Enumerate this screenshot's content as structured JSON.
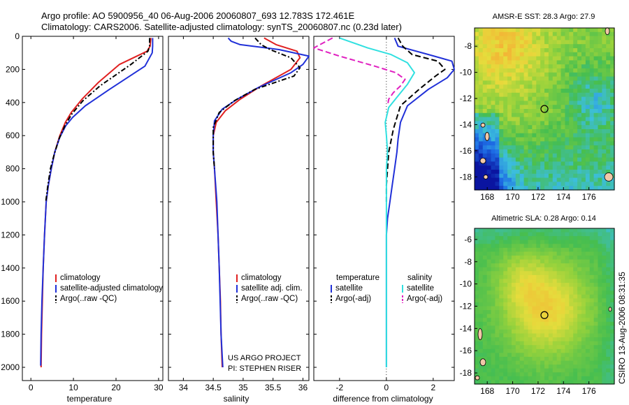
{
  "title_line1": "Argo profile: AO 5900956_40 06-Aug-2006 20060807_693 12.783S 172.461E",
  "title_line2": "Climatology: CARS2006. Satellite-adjusted climatology: synTS_20060807.nc (0.23d later)",
  "side_label": "CSIRO 13-Aug-2006 08:31:35",
  "credit_line1": "US ARGO PROJECT",
  "credit_line2": "PI: STEPHEN RISER",
  "colors": {
    "climatology": "#e02020",
    "satellite": "#2030d8",
    "argo": "#000000",
    "sat_salinity": "#30e0e0",
    "argo_adj": "#e020c0"
  },
  "chart_data": [
    {
      "type": "line",
      "xlabel": "temperature",
      "xticks": [
        0,
        10,
        20,
        30
      ],
      "xlim": [
        -2,
        31
      ],
      "ylim": [
        0,
        2080
      ],
      "yticks": [
        0,
        200,
        400,
        600,
        800,
        1000,
        1200,
        1400,
        1600,
        1800,
        2000
      ],
      "y_reversed": true,
      "legend": [
        "climatology",
        "satellite-adjusted climatology",
        "Argo(..raw -QC)"
      ],
      "series": [
        {
          "name": "climatology",
          "x": [
            28.2,
            28.0,
            27.3,
            20.8,
            15.8,
            12.0,
            9.5,
            8.1,
            6.8,
            5.6,
            4.8,
            4.1,
            3.6,
            3.2,
            2.9,
            2.7,
            2.5,
            2.4
          ],
          "y": [
            10,
            60,
            90,
            170,
            280,
            380,
            460,
            520,
            600,
            700,
            800,
            900,
            1000,
            1200,
            1400,
            1600,
            1800,
            2000
          ]
        },
        {
          "name": "satellite-adjusted climatology",
          "x": [
            28.6,
            28.6,
            28.5,
            26.8,
            18.5,
            12.8,
            9.8,
            8.2,
            6.8,
            5.6,
            4.8,
            4.1,
            3.6,
            3.2,
            2.9,
            2.6,
            2.4,
            2.3
          ],
          "y": [
            10,
            60,
            100,
            180,
            320,
            420,
            490,
            540,
            610,
            700,
            800,
            900,
            1000,
            1200,
            1400,
            1600,
            1800,
            1990
          ]
        },
        {
          "name": "Argo(..raw -QC)",
          "x": [
            27.9,
            27.9,
            27.5,
            23.5,
            16.2,
            12.2,
            9.6,
            8.0,
            6.6,
            5.4,
            4.6,
            4.0,
            3.5
          ],
          "y": [
            10,
            60,
            90,
            170,
            300,
            390,
            470,
            540,
            620,
            720,
            800,
            900,
            1000
          ]
        }
      ]
    },
    {
      "type": "line",
      "xlabel": "salinity",
      "xticks": [
        34,
        34.5,
        35,
        35.5,
        36
      ],
      "xlim": [
        33.75,
        36.1
      ],
      "ylim": [
        0,
        2080
      ],
      "y_reversed": true,
      "legend": [
        "climatology",
        "satellite adj. clim.",
        "Argo(..raw -QC)"
      ],
      "series": [
        {
          "name": "climatology",
          "x": [
            35.35,
            35.55,
            35.9,
            35.95,
            35.8,
            35.3,
            34.95,
            34.7,
            34.55,
            34.5,
            34.5,
            34.52,
            34.55,
            34.58,
            34.6,
            34.62,
            34.63,
            34.65
          ],
          "y": [
            10,
            50,
            90,
            130,
            200,
            300,
            380,
            450,
            520,
            600,
            700,
            800,
            1000,
            1200,
            1400,
            1600,
            1800,
            2000
          ]
        },
        {
          "name": "satellite adj. clim.",
          "x": [
            34.75,
            34.8,
            34.95,
            35.6,
            36.1,
            36.0,
            35.8,
            35.25,
            34.9,
            34.65,
            34.52,
            34.5,
            34.5,
            34.52,
            34.56,
            34.6,
            34.63,
            34.66
          ],
          "y": [
            10,
            30,
            50,
            80,
            120,
            170,
            220,
            310,
            380,
            440,
            510,
            600,
            700,
            800,
            1000,
            1400,
            1800,
            2000
          ]
        },
        {
          "name": "Argo(..raw -QC)",
          "x": [
            35.2,
            35.3,
            35.45,
            35.8,
            35.95,
            35.85,
            35.2,
            34.85,
            34.6,
            34.5,
            34.5,
            34.52
          ],
          "y": [
            10,
            50,
            80,
            130,
            190,
            240,
            320,
            390,
            460,
            550,
            700,
            800
          ]
        }
      ]
    },
    {
      "type": "line",
      "xlabel": "difference from climatology",
      "xticks": [
        -2,
        0,
        2
      ],
      "xlim": [
        -3.1,
        2.9
      ],
      "ylim": [
        0,
        2080
      ],
      "y_reversed": true,
      "legend": [
        "temperature satellite",
        "temperature Argo(-adj)",
        "salinity satellite",
        "salinity Argo(-adj)"
      ],
      "series": [
        {
          "name": "temperature satellite",
          "x": [
            0.35,
            0.5,
            1.8,
            2.8,
            2.9,
            2.6,
            1.8,
            0.9,
            0.6,
            0.5,
            0.45,
            0.35,
            0.25,
            0.15,
            0.05,
            0.0,
            0.0,
            0.0,
            0.0,
            0.0
          ],
          "y": [
            10,
            60,
            110,
            150,
            200,
            250,
            320,
            420,
            520,
            620,
            700,
            800,
            900,
            1000,
            1100,
            1200,
            1400,
            1600,
            1800,
            2000
          ]
        },
        {
          "name": "temperature Argo(-adj)",
          "x": [
            0.5,
            0.7,
            1.1,
            2.2,
            2.5,
            2.1,
            1.4,
            0.6,
            0.3,
            0.1,
            0.05,
            0.0,
            0.0
          ],
          "y": [
            10,
            60,
            110,
            150,
            200,
            240,
            320,
            420,
            560,
            700,
            800,
            900,
            1000
          ]
        },
        {
          "name": "salinity satellite",
          "x": [
            -2.0,
            -1.5,
            -0.8,
            0.2,
            0.9,
            1.2,
            0.9,
            0.5,
            0.1,
            -0.05,
            0.0,
            0.05,
            0.0,
            0.0,
            0.0,
            0.0,
            0.0,
            0.0,
            0.0,
            0.0
          ],
          "y": [
            10,
            35,
            70,
            110,
            160,
            220,
            290,
            360,
            430,
            520,
            600,
            700,
            800,
            900,
            1100,
            1300,
            1500,
            1700,
            1850,
            2000
          ]
        },
        {
          "name": "salinity Argo(-adj)",
          "x": [
            -2.3,
            -3.1,
            -2.0,
            -0.5,
            0.4,
            0.8,
            0.6,
            0.3,
            0.1,
            0.05
          ],
          "y": [
            10,
            70,
            120,
            180,
            220,
            260,
            300,
            340,
            380,
            420
          ]
        }
      ]
    },
    {
      "type": "heatmap",
      "title": "AMSR-E SST: 28.3 Argo: 27.9",
      "xticks": [
        168,
        170,
        172,
        174,
        176
      ],
      "yticks": [
        -8,
        -10,
        -12,
        -14,
        -16,
        -18
      ],
      "xlim": [
        167,
        178
      ],
      "ylim": [
        -19,
        -6.6
      ],
      "marker": {
        "x": 172.5,
        "y": -12.8
      }
    },
    {
      "type": "heatmap",
      "title": "Altimetric SLA: 0.28 Argo: 0.14",
      "xticks": [
        168,
        170,
        172,
        174,
        176
      ],
      "yticks": [
        -6,
        -8,
        -10,
        -12,
        -14,
        -16,
        -18
      ],
      "xlim": [
        167,
        178
      ],
      "ylim": [
        -19,
        -5
      ],
      "marker": {
        "x": 172.5,
        "y": -12.8
      }
    }
  ]
}
